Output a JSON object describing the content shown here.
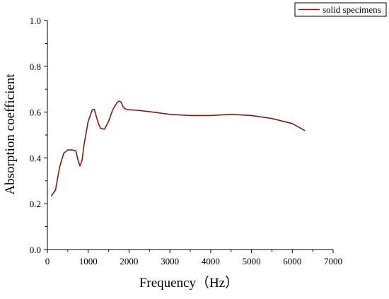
{
  "chart_data": {
    "type": "line",
    "title": "",
    "xlabel": "Frequency（Hz）",
    "ylabel": "Absorption coefficient",
    "xlim": [
      0,
      7000
    ],
    "ylim": [
      0.0,
      1.0
    ],
    "x_ticks": [
      "0",
      "1000",
      "2000",
      "3000",
      "4000",
      "5000",
      "6000",
      "7000"
    ],
    "y_ticks": [
      "0.0",
      "0.2",
      "0.4",
      "0.6",
      "0.8",
      "1.0"
    ],
    "grid": false,
    "legend_position": "top-right",
    "series": [
      {
        "name": "solid specimens",
        "color": "#8b1a0e",
        "x": [
          100,
          200,
          300,
          400,
          500,
          600,
          700,
          750,
          800,
          850,
          900,
          1000,
          1100,
          1150,
          1200,
          1250,
          1300,
          1400,
          1500,
          1600,
          1700,
          1750,
          1800,
          1850,
          1900,
          2000,
          2200,
          2500,
          3000,
          3500,
          4000,
          4500,
          5000,
          5500,
          6000,
          6300
        ],
        "values": [
          0.235,
          0.26,
          0.36,
          0.42,
          0.435,
          0.435,
          0.43,
          0.39,
          0.365,
          0.39,
          0.46,
          0.56,
          0.61,
          0.612,
          0.58,
          0.55,
          0.53,
          0.525,
          0.56,
          0.61,
          0.64,
          0.648,
          0.645,
          0.625,
          0.615,
          0.61,
          0.608,
          0.602,
          0.59,
          0.585,
          0.585,
          0.59,
          0.585,
          0.572,
          0.55,
          0.52
        ]
      }
    ]
  }
}
